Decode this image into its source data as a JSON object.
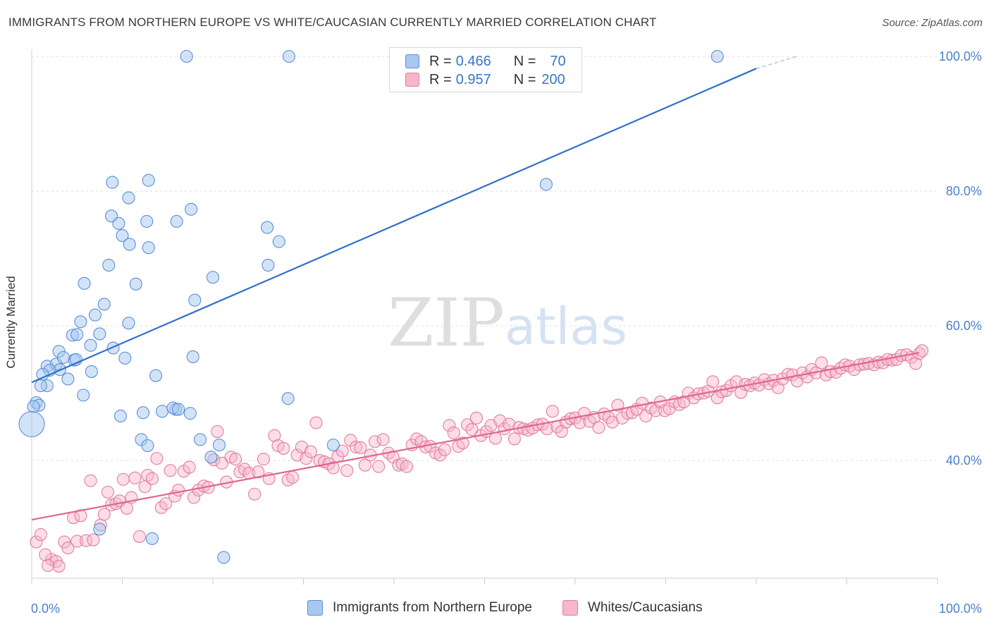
{
  "title": "IMMIGRANTS FROM NORTHERN EUROPE VS WHITE/CAUCASIAN CURRENTLY MARRIED CORRELATION CHART",
  "source": "Source: ZipAtlas.com",
  "watermark": {
    "zip": "ZIP",
    "atlas": "atlas"
  },
  "legend": {
    "rows": [
      {
        "r_label": "R =",
        "r_value": "0.466",
        "n_label": "N =",
        "n_value": "70",
        "color": "#a8c8f0",
        "border": "#5b8fd6"
      },
      {
        "r_label": "R =",
        "r_value": "0.957",
        "n_label": "N =",
        "n_value": "200",
        "color": "#f7b6ca",
        "border": "#e07fa0"
      }
    ]
  },
  "bottom_legend": [
    {
      "label": "Immigrants from Northern Europe",
      "color": "#a8c8f0",
      "border": "#5b8fd6"
    },
    {
      "label": "Whites/Caucasians",
      "color": "#f7b6ca",
      "border": "#e07fa0"
    }
  ],
  "chart_data": {
    "type": "scatter",
    "title": "IMMIGRANTS FROM NORTHERN EUROPE VS WHITE/CAUCASIAN CURRENTLY MARRIED CORRELATION CHART",
    "xlabel": "",
    "ylabel": "Currently Married",
    "xlim": [
      0,
      100
    ],
    "ylim": [
      18,
      102
    ],
    "x_tick_labels": [
      "0.0%",
      "100.0%"
    ],
    "y_ticks": [
      40,
      60,
      80,
      100
    ],
    "y_tick_labels": [
      "40.0%",
      "60.0%",
      "80.0%",
      "100.0%"
    ],
    "grid": true,
    "legend_position": "top-center",
    "series": [
      {
        "name": "Immigrants from Northern Europe",
        "color": "#5b8fd6",
        "fill": "#a8c8f0",
        "trend": {
          "x": [
            0,
            80
          ],
          "y": [
            51.6,
            98.2
          ],
          "dashed_to": [
            84.5,
            100.0
          ]
        },
        "points": [
          [
            17.1,
            100
          ],
          [
            28.4,
            100
          ],
          [
            75.7,
            100
          ],
          [
            12.9,
            81.6
          ],
          [
            8.9,
            81.3
          ],
          [
            56.8,
            81
          ],
          [
            10.7,
            79
          ],
          [
            17.6,
            77.3
          ],
          [
            8.8,
            76.3
          ],
          [
            12.7,
            75.5
          ],
          [
            16.0,
            75.5
          ],
          [
            9.6,
            75.2
          ],
          [
            26.0,
            74.6
          ],
          [
            10.0,
            73.4
          ],
          [
            10.8,
            72.1
          ],
          [
            27.3,
            72.5
          ],
          [
            12.9,
            71.6
          ],
          [
            8.5,
            69
          ],
          [
            26.1,
            69.0
          ],
          [
            20.0,
            67.2
          ],
          [
            11.5,
            66.2
          ],
          [
            5.8,
            66.3
          ],
          [
            18.0,
            63.8
          ],
          [
            8.0,
            63.2
          ],
          [
            7.0,
            61.6
          ],
          [
            5.4,
            60.6
          ],
          [
            10.7,
            60.4
          ],
          [
            4.5,
            58.6
          ],
          [
            5.0,
            58.7
          ],
          [
            7.5,
            58.8
          ],
          [
            3.0,
            56.2
          ],
          [
            6.5,
            57.1
          ],
          [
            9.0,
            56.7
          ],
          [
            4.7,
            54.9
          ],
          [
            10.3,
            55.2
          ],
          [
            17.8,
            55.4
          ],
          [
            4.9,
            55.0
          ],
          [
            1.7,
            54.0
          ],
          [
            2.7,
            54.3
          ],
          [
            3.5,
            55.3
          ],
          [
            3.1,
            53.5
          ],
          [
            2.0,
            53.4
          ],
          [
            6.6,
            53.2
          ],
          [
            1.2,
            52.8
          ],
          [
            4.0,
            52.1
          ],
          [
            13.7,
            52.6
          ],
          [
            1.7,
            51.1
          ],
          [
            1.0,
            51.1
          ],
          [
            5.7,
            49.7
          ],
          [
            28.3,
            49.2
          ],
          [
            0.5,
            48.6
          ],
          [
            0.8,
            48.2
          ],
          [
            0.2,
            48.0
          ],
          [
            14.4,
            47.3
          ],
          [
            9.8,
            46.6
          ],
          [
            15.9,
            47.6
          ],
          [
            15.6,
            47.8
          ],
          [
            17.5,
            47
          ],
          [
            0.0,
            45.4
          ],
          [
            12.1,
            43.1
          ],
          [
            18.6,
            43.1
          ],
          [
            12.8,
            42.2
          ],
          [
            20.7,
            42.3
          ],
          [
            33.3,
            42.3
          ],
          [
            19.8,
            40.5
          ],
          [
            7.5,
            29.8
          ],
          [
            13.3,
            28.4
          ],
          [
            21.2,
            25.6
          ],
          [
            12.3,
            47.1
          ],
          [
            16.2,
            47.6
          ]
        ]
      },
      {
        "name": "Whites/Caucasians",
        "color": "#e07fa0",
        "fill": "#f7b6ca",
        "trend": {
          "x": [
            0,
            98
          ],
          "y": [
            31.2,
            56.0
          ]
        },
        "points": [
          [
            0.5,
            27.9
          ],
          [
            1.0,
            29.0
          ],
          [
            2.2,
            25.3
          ],
          [
            1.5,
            26.0
          ],
          [
            2.7,
            25.0
          ],
          [
            3.0,
            24.3
          ],
          [
            1.8,
            24.4
          ],
          [
            3.6,
            27.9
          ],
          [
            4.0,
            27.0
          ],
          [
            4.6,
            31.5
          ],
          [
            5.0,
            28.0
          ],
          [
            5.4,
            31.8
          ],
          [
            6.0,
            28.1
          ],
          [
            6.5,
            37.0
          ],
          [
            6.8,
            28.2
          ],
          [
            7.6,
            30.4
          ],
          [
            8.0,
            32.0
          ],
          [
            8.4,
            35.3
          ],
          [
            8.8,
            33.4
          ],
          [
            9.3,
            33.6
          ],
          [
            9.7,
            34.0
          ],
          [
            10.1,
            37.2
          ],
          [
            10.5,
            32.9
          ],
          [
            11.0,
            34.5
          ],
          [
            11.4,
            37.4
          ],
          [
            11.9,
            28.7
          ],
          [
            12.5,
            36.1
          ],
          [
            12.8,
            37.8
          ],
          [
            13.3,
            37.3
          ],
          [
            13.8,
            40.3
          ],
          [
            14.3,
            33.0
          ],
          [
            14.8,
            33.6
          ],
          [
            15.3,
            38.5
          ],
          [
            15.8,
            34.7
          ],
          [
            16.2,
            35.6
          ],
          [
            16.8,
            38.4
          ],
          [
            17.4,
            39.0
          ],
          [
            17.9,
            34.5
          ],
          [
            18.4,
            35.6
          ],
          [
            19.0,
            36.2
          ],
          [
            19.5,
            36.0
          ],
          [
            20.1,
            40.1
          ],
          [
            20.5,
            44.3
          ],
          [
            21.0,
            39.6
          ],
          [
            21.5,
            36.8
          ],
          [
            22.0,
            40.5
          ],
          [
            22.5,
            40.2
          ],
          [
            23.0,
            38.3
          ],
          [
            23.5,
            38.7
          ],
          [
            24.0,
            38.1
          ],
          [
            24.6,
            35.0
          ],
          [
            25.0,
            38.3
          ],
          [
            25.6,
            40.2
          ],
          [
            26.2,
            37.3
          ],
          [
            26.8,
            43.7
          ],
          [
            27.2,
            42.2
          ],
          [
            27.8,
            41.8
          ],
          [
            28.3,
            37.1
          ],
          [
            28.8,
            37.5
          ],
          [
            29.3,
            40.8
          ],
          [
            29.8,
            42.0
          ],
          [
            30.3,
            40.3
          ],
          [
            30.8,
            41.3
          ],
          [
            31.4,
            45.6
          ],
          [
            31.8,
            40.0
          ],
          [
            32.3,
            39.8
          ],
          [
            32.8,
            39.5
          ],
          [
            33.3,
            38.9
          ],
          [
            33.8,
            40.6
          ],
          [
            34.3,
            41.4
          ],
          [
            34.8,
            38.5
          ],
          [
            35.2,
            43.0
          ],
          [
            35.8,
            42.0
          ],
          [
            36.3,
            41.9
          ],
          [
            36.8,
            39.3
          ],
          [
            37.4,
            40.8
          ],
          [
            37.9,
            42.8
          ],
          [
            38.3,
            39.1
          ],
          [
            38.8,
            43.1
          ],
          [
            39.4,
            41.1
          ],
          [
            39.9,
            40.5
          ],
          [
            40.5,
            39.3
          ],
          [
            40.9,
            39.5
          ],
          [
            41.4,
            39.1
          ],
          [
            42.0,
            42.3
          ],
          [
            42.5,
            43.2
          ],
          [
            43.0,
            42.8
          ],
          [
            43.5,
            42.0
          ],
          [
            44.0,
            42.1
          ],
          [
            44.6,
            41.1
          ],
          [
            45.1,
            40.8
          ],
          [
            45.6,
            41.6
          ],
          [
            46.1,
            45.2
          ],
          [
            46.6,
            44.1
          ],
          [
            47.1,
            42.1
          ],
          [
            47.6,
            42.6
          ],
          [
            48.1,
            45.3
          ],
          [
            48.6,
            44.6
          ],
          [
            49.1,
            46.3
          ],
          [
            49.6,
            43.7
          ],
          [
            50.2,
            44.3
          ],
          [
            50.7,
            45.2
          ],
          [
            51.2,
            43.3
          ],
          [
            51.7,
            45.9
          ],
          [
            52.2,
            44.7
          ],
          [
            52.7,
            45.4
          ],
          [
            53.3,
            43.2
          ],
          [
            53.8,
            44.9
          ],
          [
            54.3,
            44.7
          ],
          [
            54.8,
            44.5
          ],
          [
            55.3,
            44.8
          ],
          [
            55.9,
            45.3
          ],
          [
            56.4,
            45.4
          ],
          [
            56.9,
            44.7
          ],
          [
            57.5,
            47.3
          ],
          [
            58.0,
            45.0
          ],
          [
            58.5,
            44.3
          ],
          [
            59.0,
            45.7
          ],
          [
            59.5,
            46.2
          ],
          [
            60.0,
            46.3
          ],
          [
            60.5,
            45.6
          ],
          [
            61.0,
            47.0
          ],
          [
            61.6,
            45.8
          ],
          [
            62.1,
            46.4
          ],
          [
            62.6,
            44.9
          ],
          [
            63.2,
            46.9
          ],
          [
            63.7,
            46.4
          ],
          [
            64.1,
            45.7
          ],
          [
            64.7,
            48.2
          ],
          [
            65.2,
            46.3
          ],
          [
            65.8,
            47.0
          ],
          [
            66.3,
            47.1
          ],
          [
            66.8,
            47.6
          ],
          [
            67.4,
            48.5
          ],
          [
            67.8,
            46.6
          ],
          [
            68.4,
            47.8
          ],
          [
            68.9,
            47.4
          ],
          [
            69.4,
            48.7
          ],
          [
            69.9,
            47.4
          ],
          [
            70.4,
            47.7
          ],
          [
            71.0,
            48.7
          ],
          [
            71.5,
            48.3
          ],
          [
            72.0,
            48.7
          ],
          [
            72.5,
            50.0
          ],
          [
            73.1,
            49.3
          ],
          [
            73.6,
            49.9
          ],
          [
            74.2,
            50.0
          ],
          [
            74.7,
            50.3
          ],
          [
            75.2,
            51.7
          ],
          [
            75.7,
            49.3
          ],
          [
            76.2,
            50.2
          ],
          [
            76.7,
            50.4
          ],
          [
            77.2,
            51.1
          ],
          [
            77.8,
            51.7
          ],
          [
            78.3,
            50.1
          ],
          [
            78.8,
            51.3
          ],
          [
            79.3,
            51.1
          ],
          [
            79.8,
            51.5
          ],
          [
            80.3,
            51.2
          ],
          [
            80.9,
            52.0
          ],
          [
            81.4,
            51.4
          ],
          [
            81.9,
            51.9
          ],
          [
            82.4,
            50.8
          ],
          [
            82.9,
            52.1
          ],
          [
            83.5,
            52.8
          ],
          [
            84.0,
            52.7
          ],
          [
            84.5,
            51.8
          ],
          [
            85.1,
            53.0
          ],
          [
            85.6,
            52.4
          ],
          [
            86.1,
            53.5
          ],
          [
            86.6,
            53.0
          ],
          [
            87.2,
            54.5
          ],
          [
            87.7,
            52.7
          ],
          [
            88.2,
            53.2
          ],
          [
            88.8,
            53.1
          ],
          [
            89.3,
            53.7
          ],
          [
            89.8,
            54.2
          ],
          [
            90.3,
            54.0
          ],
          [
            90.8,
            53.5
          ],
          [
            91.4,
            54.2
          ],
          [
            91.9,
            54.3
          ],
          [
            92.4,
            54.4
          ],
          [
            93.0,
            54.2
          ],
          [
            93.5,
            54.6
          ],
          [
            94.0,
            54.5
          ],
          [
            94.5,
            55.0
          ],
          [
            95.0,
            54.9
          ],
          [
            95.5,
            55.0
          ],
          [
            96.0,
            55.6
          ],
          [
            96.6,
            55.7
          ],
          [
            97.1,
            55.3
          ],
          [
            97.6,
            54.4
          ],
          [
            98.0,
            55.9
          ],
          [
            98.3,
            56.3
          ]
        ]
      }
    ]
  }
}
